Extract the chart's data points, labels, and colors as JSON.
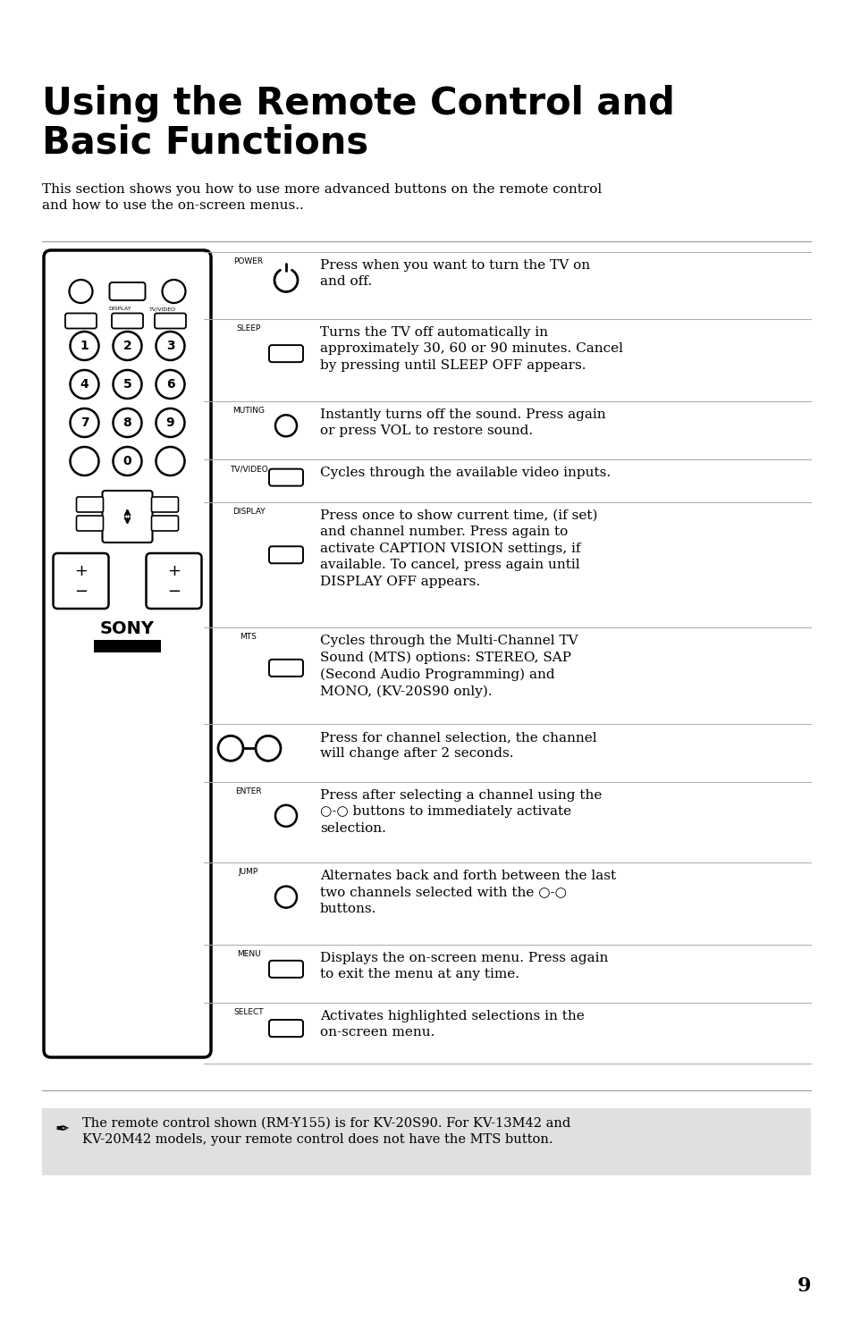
{
  "title_line1": "Using the Remote Control and",
  "title_line2": "Basic Functions",
  "intro": "This section shows you how to use more advanced buttons on the remote control\nand how to use the on-screen menus..",
  "page_number": "9",
  "bg_color": "#ffffff",
  "table_rows": [
    {
      "label": "POWER",
      "symbol": "circle_power",
      "text": "Press when you want to turn the TV on\nand off."
    },
    {
      "label": "SLEEP",
      "symbol": "rect_small",
      "text": "Turns the TV off automatically in\napproximately 30, 60 or 90 minutes. Cancel\nby pressing until SLEEP OFF appears."
    },
    {
      "label": "MUTING",
      "symbol": "circle_small",
      "text": "Instantly turns off the sound. Press again\nor press VOL to restore sound."
    },
    {
      "label": "TV/VIDEO",
      "symbol": "rect_small",
      "text": "Cycles through the available video inputs."
    },
    {
      "label": "DISPLAY",
      "symbol": "rect_small",
      "text": "Press once to show current time, (if set)\nand channel number. Press again to\nactivate CAPTION VISION settings, if\navailable. To cancel, press again until\nDISPLAY OFF appears."
    },
    {
      "label": "MTS",
      "symbol": "rect_small",
      "text": "Cycles through the Multi-Channel TV\nSound (MTS) options: STEREO, SAP\n(Second Audio Programming) and\nMONO, (KV-20S90 only)."
    },
    {
      "label": "",
      "symbol": "two_circles",
      "text": "Press for channel selection, the channel\nwill change after 2 seconds."
    },
    {
      "label": "ENTER",
      "symbol": "circle_small",
      "text": "Press after selecting a channel using the\n○-○ buttons to immediately activate\nselection."
    },
    {
      "label": "JUMP",
      "symbol": "circle_small",
      "text": "Alternates back and forth between the last\ntwo channels selected with the ○-○\nbuttons."
    },
    {
      "label": "MENU",
      "symbol": "rect_small",
      "text": "Displays the on-screen menu. Press again\nto exit the menu at any time."
    },
    {
      "label": "SELECT",
      "symbol": "rect_small",
      "text": "Activates highlighted selections in the\non-screen menu."
    }
  ],
  "note": "The remote control shown (RM-Y155) is for KV-20S90. For KV-13M42 and\nKV-20M42 models, your remote control does not have the MTS button.",
  "note_bg": "#e0e0e0",
  "title_fontsize": 30,
  "intro_fontsize": 11,
  "label_fontsize": 6.5,
  "body_fontsize": 11,
  "note_fontsize": 10.5
}
